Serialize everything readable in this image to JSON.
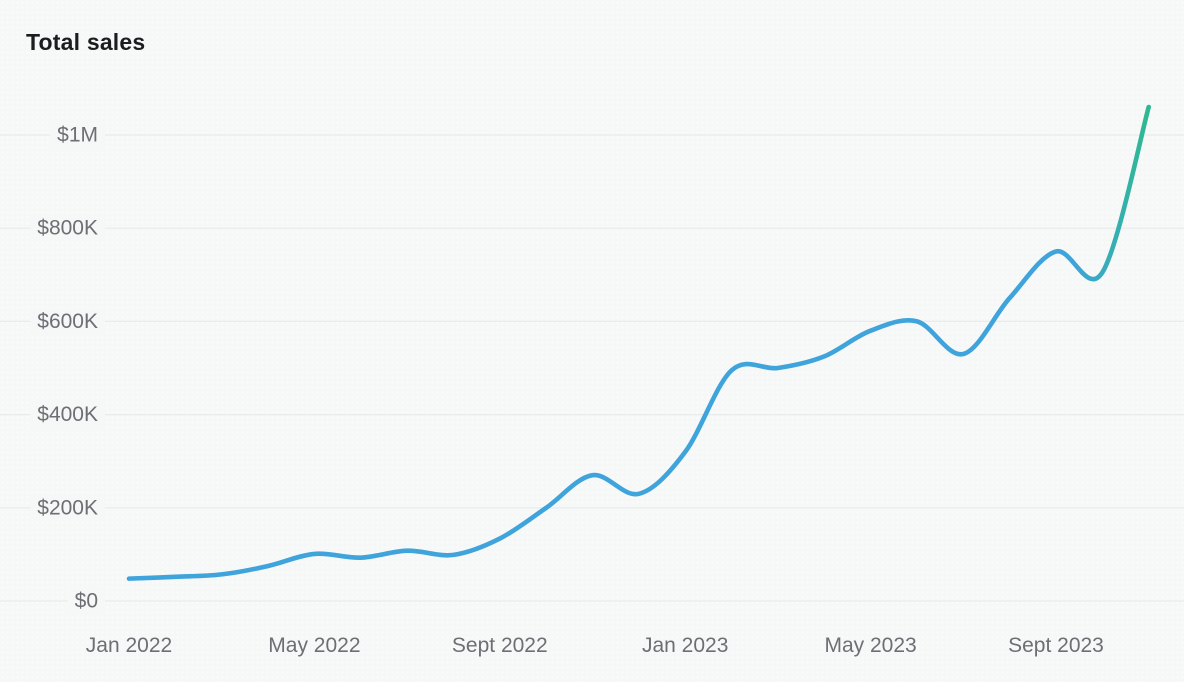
{
  "page": {
    "background_color": "#f6f7f7"
  },
  "chart_data": {
    "type": "line",
    "title": "Total sales",
    "legend": "none",
    "grid": "horizontal",
    "x": [
      "Jan 2022",
      "Feb 2022",
      "Mar 2022",
      "Apr 2022",
      "May 2022",
      "Jun 2022",
      "Jul 2022",
      "Aug 2022",
      "Sep 2022",
      "Oct 2022",
      "Nov 2022",
      "Dec 2022",
      "Jan 2023",
      "Feb 2023",
      "Mar 2023",
      "Apr 2023",
      "May 2023",
      "Jun 2023",
      "Jul 2023",
      "Aug 2023",
      "Sep 2023",
      "Oct 2023",
      "Nov 2023"
    ],
    "series": [
      {
        "name": "Total sales",
        "values": [
          48000,
          52000,
          57000,
          75000,
          101000,
          93000,
          108000,
          99000,
          134000,
          200000,
          270000,
          230000,
          320000,
          495000,
          500000,
          525000,
          580000,
          600000,
          530000,
          650000,
          750000,
          705000,
          1060000
        ]
      }
    ],
    "y_axis": {
      "min": 0,
      "max": 1000000,
      "tick_step": 200000,
      "tick_values": [
        0,
        200000,
        400000,
        600000,
        800000,
        1000000
      ],
      "tick_labels": [
        "$0",
        "$200K",
        "$400K",
        "$600K",
        "$800K",
        "$1M"
      ]
    },
    "x_axis": {
      "tick_indices": [
        0,
        4,
        8,
        12,
        16,
        20
      ],
      "tick_labels": [
        "Jan 2022",
        "May 2022",
        "Sept 2022",
        "Jan 2023",
        "May 2023",
        "Sept 2023"
      ]
    },
    "colors": {
      "line_start": "#3fa3dc",
      "line_end": "#2eb98e",
      "gridline": "#e9eaea",
      "axis_text": "#6c7074",
      "title_text": "#1b1d1f"
    }
  }
}
